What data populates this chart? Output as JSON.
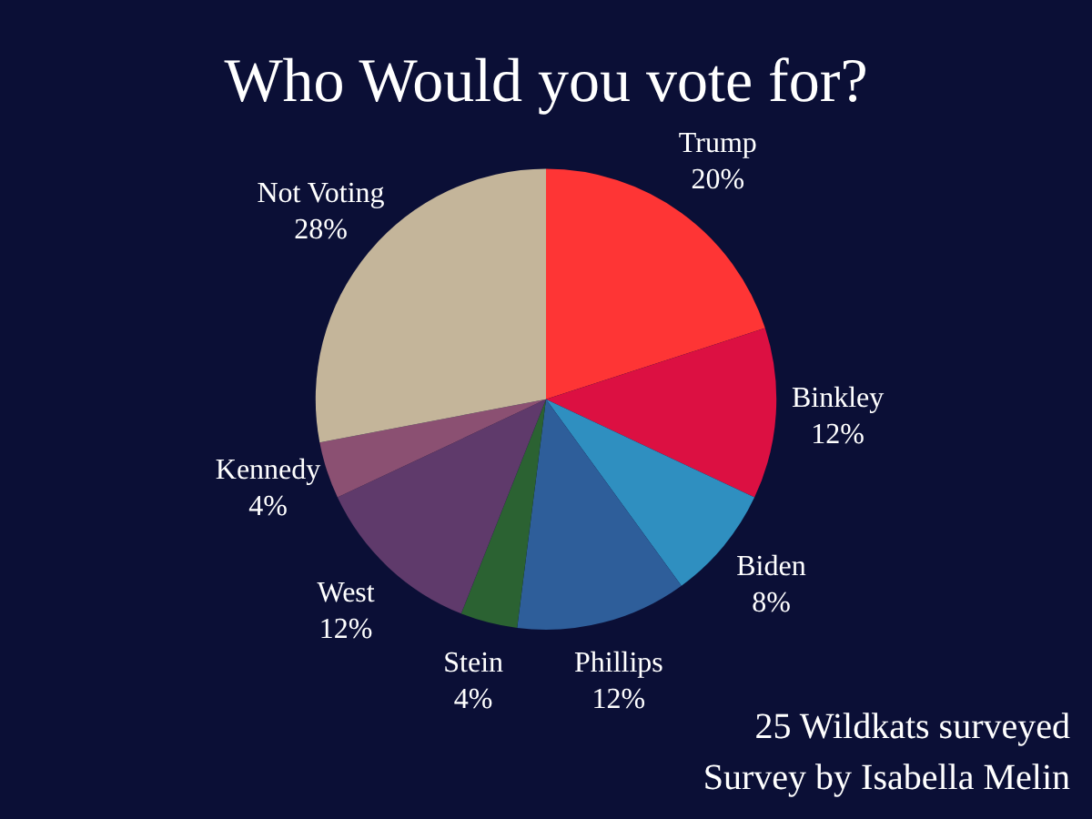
{
  "chart_data": {
    "type": "pie",
    "title": "Who Would you vote for?",
    "categories": [
      "Trump",
      "Binkley",
      "Biden",
      "Phillips",
      "Stein",
      "West",
      "Kennedy",
      "Not Voting"
    ],
    "values": [
      20,
      12,
      8,
      12,
      4,
      12,
      4,
      28
    ],
    "value_labels": [
      "20%",
      "12%",
      "8%",
      "12%",
      "4%",
      "12%",
      "4%",
      "28%"
    ],
    "colors": [
      "#fe3535",
      "#dc1042",
      "#2f8fc0",
      "#2e5e9a",
      "#2b6232",
      "#5f3a6b",
      "#8b5072",
      "#c4b59a"
    ],
    "annotations": [
      "25 Wildkats surveyed",
      "Survey by Isabella Melin"
    ],
    "legend": false
  }
}
